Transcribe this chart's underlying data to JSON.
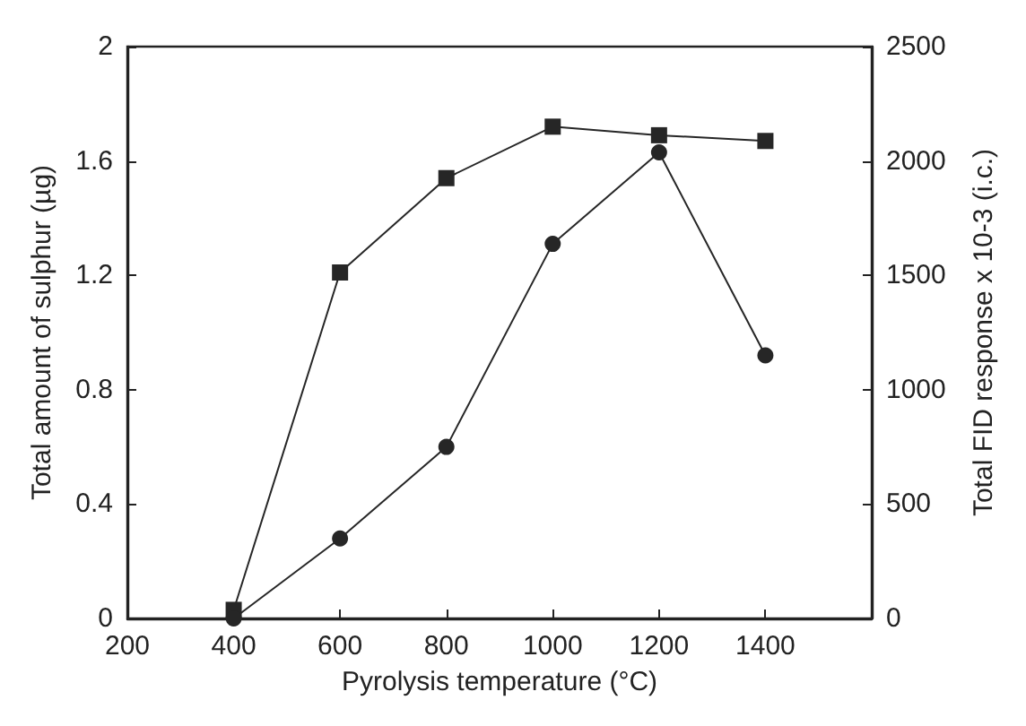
{
  "chart_data": {
    "type": "line",
    "xlabel": "Pyrolysis temperature (°C)",
    "ylabel": "Total amount of sulphur (µg)",
    "y2label": "Total FID response x 10-3 (i.c.)",
    "x": [
      400,
      600,
      800,
      1000,
      1200,
      1400
    ],
    "series": [
      {
        "color": "#262626",
        "marker": "square",
        "values": [
          0.03,
          1.21,
          1.54,
          1.72,
          1.69,
          1.67
        ]
      },
      {
        "color": "#262626",
        "marker": "circle",
        "values": [
          0,
          0.28,
          0.6,
          1.31,
          1.63,
          0.92
        ]
      }
    ],
    "xlim": [
      200,
      1600
    ],
    "xticks": [
      200,
      400,
      600,
      800,
      1000,
      1200,
      1400
    ],
    "ylim": [
      0,
      2
    ],
    "yticks": [
      0,
      0.4,
      0.8,
      1.2,
      1.6,
      2
    ],
    "y2lim": [
      0,
      2500
    ],
    "y2ticks": [
      0,
      500,
      1000,
      1500,
      2000,
      2500
    ],
    "grid": false,
    "line_style": "solid"
  }
}
